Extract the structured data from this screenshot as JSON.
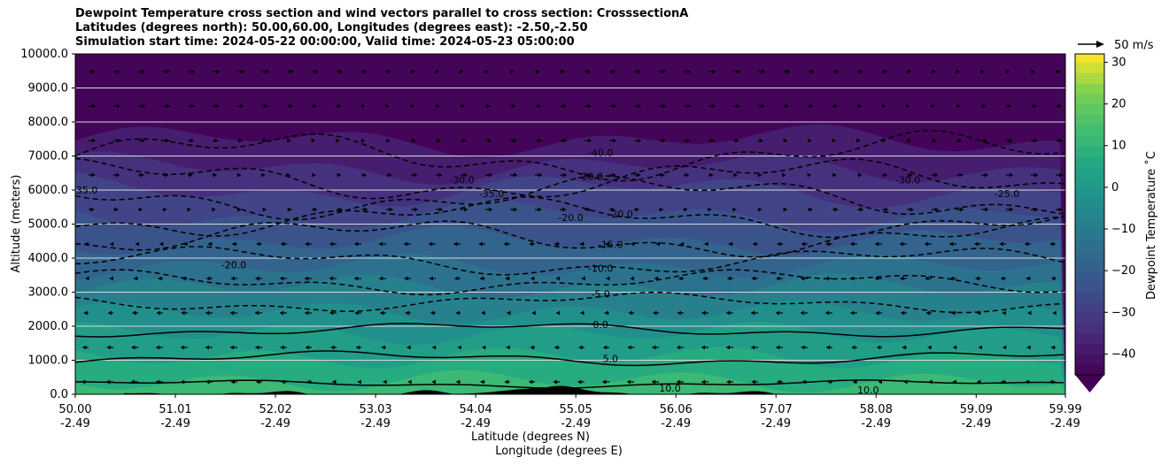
{
  "titles": {
    "line1": "Dewpoint Temperature cross section and wind vectors parallel to cross section: CrosssectionA",
    "line2": "Latitudes (degrees north): 50.00,60.00, Longitudes (degrees east): -2.50,-2.50",
    "line3": "Simulation start time: 2024-05-22 00:00:00, Valid time: 2024-05-23 05:00:00"
  },
  "chart_data": {
    "type": "heatmap",
    "ylabel": "Altitude (meters)",
    "xlabel_lat": "Latitude (degrees N)",
    "xlabel_lon": "Longitude (degrees E)",
    "ylim": [
      0,
      10000
    ],
    "y_ticks": [
      "0.0",
      "1000.0",
      "2000.0",
      "3000.0",
      "4000.0",
      "5000.0",
      "6000.0",
      "7000.0",
      "8000.0",
      "9000.0",
      "10000.0"
    ],
    "y_tick_values": [
      0,
      1000,
      2000,
      3000,
      4000,
      5000,
      6000,
      7000,
      8000,
      9000,
      10000
    ],
    "xlim": [
      50.0,
      59.99
    ],
    "x_tick_values": [
      50.0,
      51.01,
      52.02,
      53.03,
      54.04,
      55.05,
      56.06,
      57.07,
      58.08,
      59.09,
      59.99
    ],
    "x_ticks_lat": [
      "50.00",
      "51.01",
      "52.02",
      "53.03",
      "54.04",
      "55.05",
      "56.06",
      "57.07",
      "58.08",
      "59.09",
      "59.99"
    ],
    "x_ticks_lon": [
      "-2.49",
      "-2.49",
      "-2.49",
      "-2.49",
      "-2.49",
      "-2.49",
      "-2.49",
      "-2.49",
      "-2.49",
      "-2.49",
      "-2.49"
    ],
    "grid": "horizontal",
    "colorbar": {
      "label": "Dewpoint Temperature ˚C",
      "range": [
        -45,
        32
      ],
      "ticks": [
        -40,
        -30,
        -20,
        -10,
        0,
        10,
        20,
        30
      ],
      "tick_labels": [
        "−40",
        "−30",
        "−20",
        "−10",
        "0",
        "10",
        "20",
        "30"
      ],
      "extend": "min",
      "colormap": "viridis"
    },
    "quiver_key": "50 m/s",
    "contour_levels": [
      -40,
      -35,
      -30,
      -25,
      -20,
      -15,
      -10,
      -5,
      0,
      5,
      10
    ],
    "contour_labels": [
      {
        "text": "-35.0",
        "lat": 50.1,
        "alt": 6000
      },
      {
        "text": "-30.0",
        "lat": 53.9,
        "alt": 6300
      },
      {
        "text": "-35.0",
        "lat": 54.2,
        "alt": 5900
      },
      {
        "text": "-40.0",
        "lat": 55.3,
        "alt": 7100
      },
      {
        "text": "-30.0",
        "lat": 55.2,
        "alt": 6400
      },
      {
        "text": "-20.0",
        "lat": 55.0,
        "alt": 5200
      },
      {
        "text": "-20.0",
        "lat": 55.5,
        "alt": 5300
      },
      {
        "text": "-20.0",
        "lat": 51.6,
        "alt": 3800
      },
      {
        "text": "-15.0",
        "lat": 55.4,
        "alt": 4400
      },
      {
        "text": "-10.0",
        "lat": 55.3,
        "alt": 3700
      },
      {
        "text": "-5.0",
        "lat": 55.3,
        "alt": 2950
      },
      {
        "text": "0.0",
        "lat": 55.3,
        "alt": 2050
      },
      {
        "text": "5.0",
        "lat": 55.4,
        "alt": 1050
      },
      {
        "text": "-30.0",
        "lat": 58.4,
        "alt": 6300
      },
      {
        "text": "-25.0",
        "lat": 59.4,
        "alt": 5900
      },
      {
        "text": "10.0",
        "lat": 58.0,
        "alt": 130
      },
      {
        "text": "10.0",
        "lat": 56.0,
        "alt": 180
      }
    ]
  }
}
